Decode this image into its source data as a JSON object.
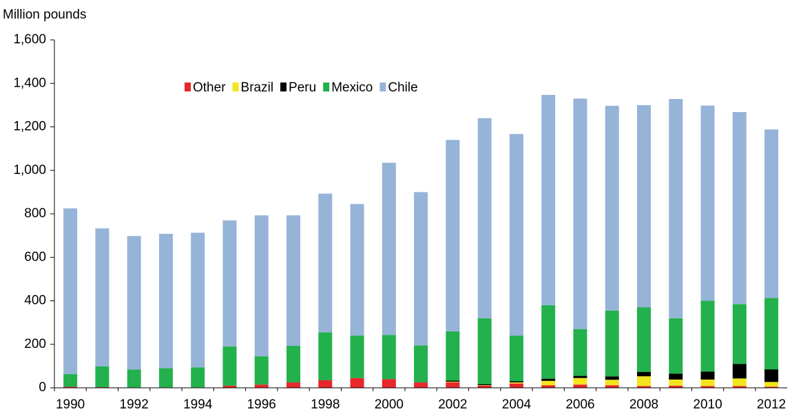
{
  "chart_data": {
    "type": "stacked_bar",
    "y_label": "Million pounds",
    "categories": [
      "1990",
      null,
      "1992",
      null,
      "1994",
      null,
      "1996",
      null,
      "1998",
      null,
      "2000",
      null,
      "2002",
      null,
      "2004",
      null,
      "2006",
      null,
      "2008",
      null,
      "2010",
      null,
      "2012"
    ],
    "series": [
      {
        "name": "Other",
        "color": "#e8262b",
        "values": [
          5,
          3,
          2,
          2,
          2,
          10,
          15,
          25,
          35,
          45,
          40,
          25,
          25,
          10,
          20,
          12,
          15,
          12,
          8,
          10,
          8,
          8,
          5
        ]
      },
      {
        "name": "Brazil",
        "color": "#f2e51d",
        "values": [
          0,
          0,
          0,
          0,
          0,
          0,
          0,
          0,
          0,
          0,
          0,
          0,
          3,
          2,
          5,
          20,
          30,
          25,
          45,
          28,
          30,
          35,
          22
        ]
      },
      {
        "name": "Peru",
        "color": "#000000",
        "values": [
          0,
          0,
          0,
          0,
          0,
          0,
          0,
          0,
          0,
          0,
          0,
          0,
          5,
          5,
          5,
          10,
          10,
          15,
          20,
          27,
          37,
          67,
          58
        ]
      },
      {
        "name": "Mexico",
        "color": "#22b14c",
        "values": [
          58,
          95,
          82,
          88,
          92,
          180,
          130,
          168,
          220,
          195,
          203,
          170,
          227,
          303,
          210,
          338,
          215,
          303,
          297,
          255,
          325,
          275,
          328
        ]
      },
      {
        "name": "Chile",
        "color": "#96b3d8",
        "values": [
          762,
          635,
          614,
          618,
          619,
          580,
          648,
          600,
          638,
          605,
          792,
          705,
          880,
          920,
          927,
          967,
          1060,
          942,
          930,
          1008,
          898,
          883,
          775
        ]
      }
    ],
    "ylim": [
      0,
      1600
    ],
    "yticks": [
      0,
      200,
      400,
      600,
      800,
      {
        "value": 1000,
        "label": "1,000"
      },
      {
        "value": 1200,
        "label": "1,200"
      },
      {
        "value": 1400,
        "label": "1,400"
      },
      {
        "value": 1600,
        "label": "1,600"
      }
    ],
    "grid": false
  }
}
